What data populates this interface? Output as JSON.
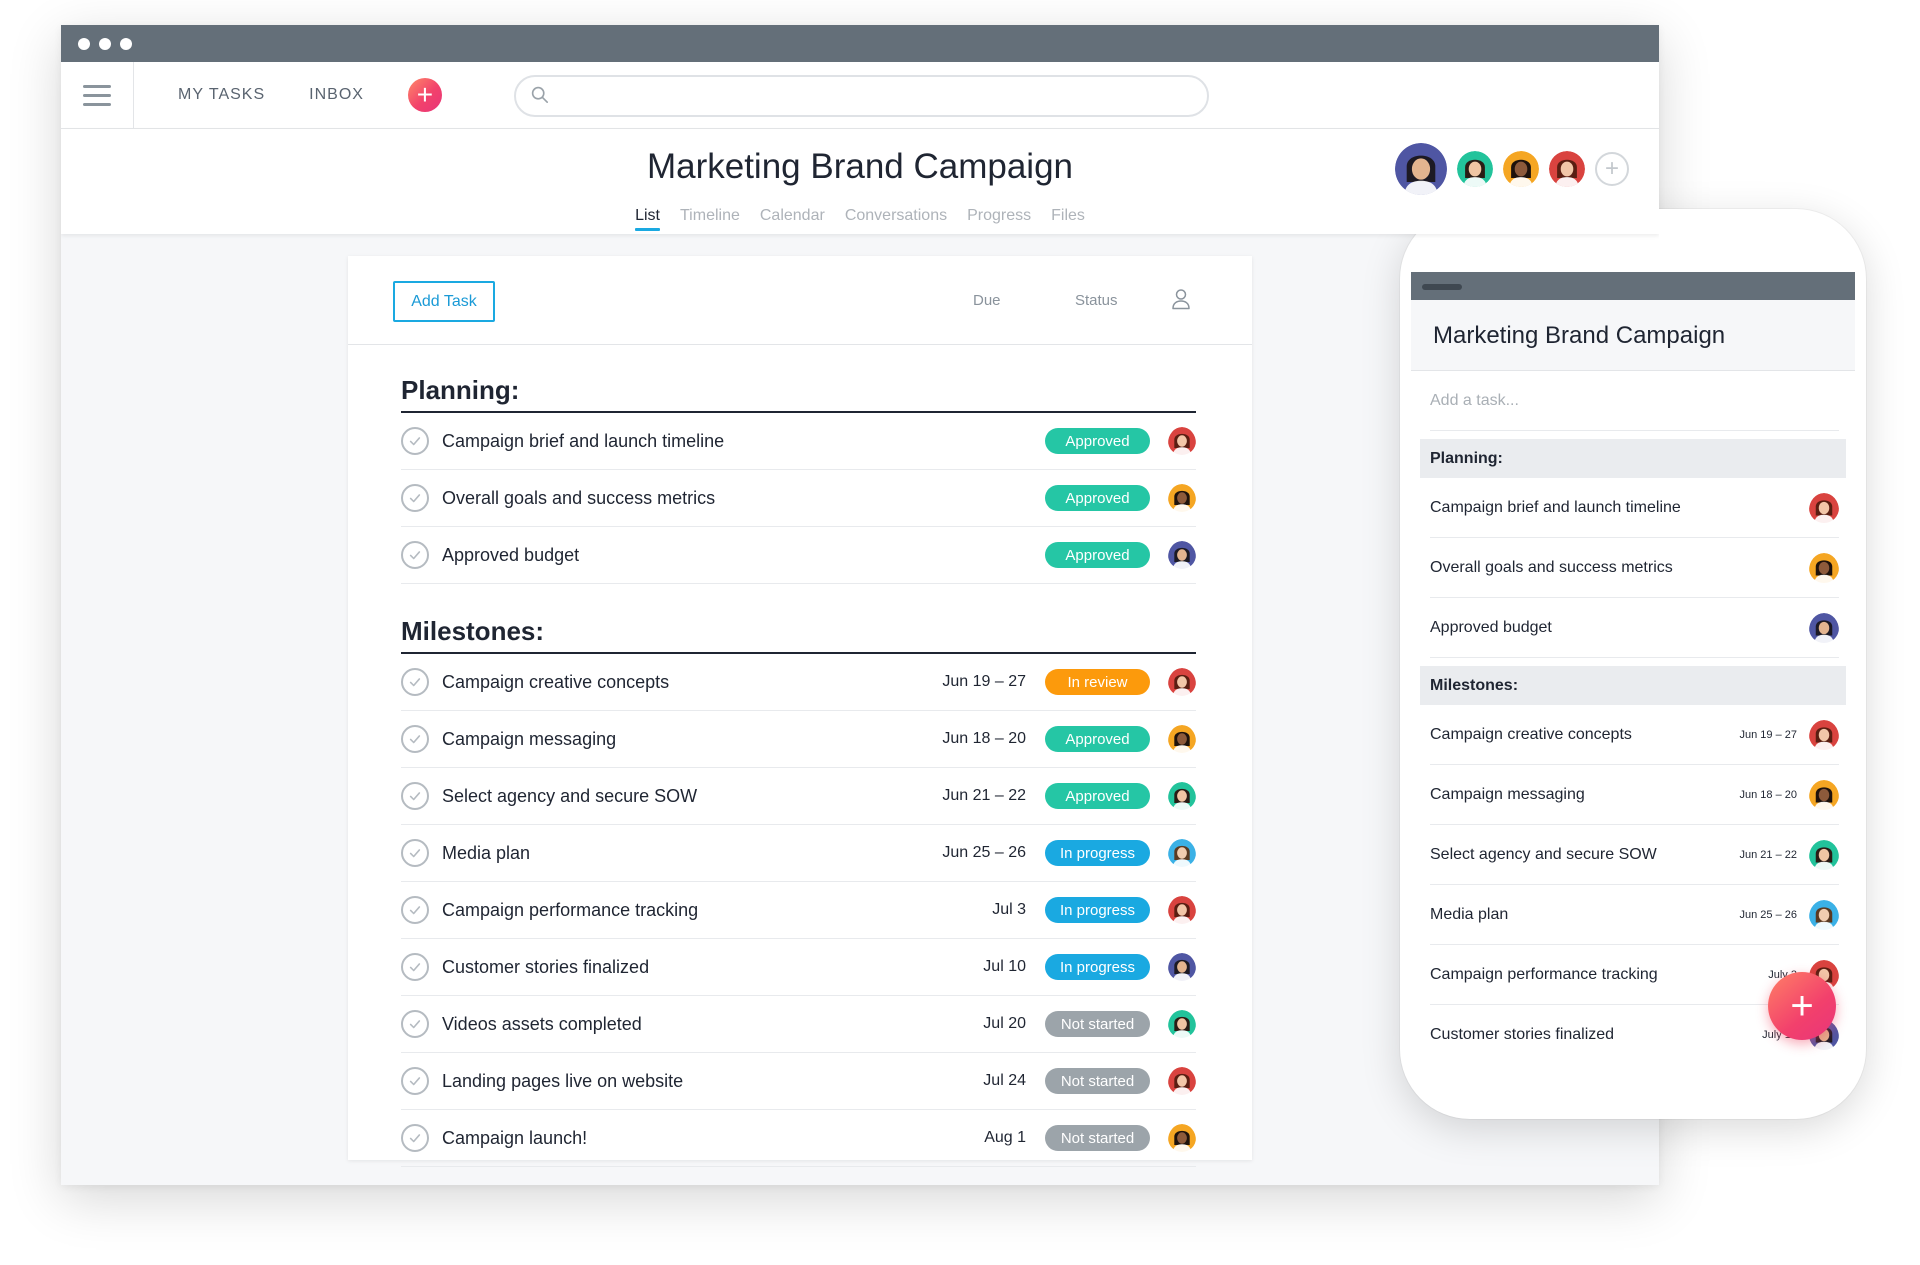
{
  "window": {
    "nav": {
      "my_tasks": "MY TASKS",
      "inbox": "INBOX",
      "add": "+"
    },
    "search": {
      "placeholder": ""
    },
    "project": {
      "title": "Marketing Brand Campaign",
      "tabs": [
        {
          "label": "List",
          "active": true
        },
        {
          "label": "Timeline"
        },
        {
          "label": "Calendar"
        },
        {
          "label": "Conversations"
        },
        {
          "label": "Progress"
        },
        {
          "label": "Files"
        }
      ],
      "add_member": "+"
    },
    "card": {
      "add_task": "Add Task",
      "col_due": "Due",
      "col_status": "Status",
      "sections": [
        {
          "title": "Planning:",
          "tasks": [
            {
              "name": "Campaign brief and launch timeline",
              "due": "",
              "status": "Approved",
              "kind": "approved",
              "avatar": "red"
            },
            {
              "name": "Overall goals and success metrics",
              "due": "",
              "status": "Approved",
              "kind": "approved",
              "avatar": "orange"
            },
            {
              "name": "Approved budget",
              "due": "",
              "status": "Approved",
              "kind": "approved",
              "avatar": "purple"
            }
          ]
        },
        {
          "title": "Milestones:",
          "tasks": [
            {
              "name": "Campaign creative concepts",
              "due": "Jun 19 – 27",
              "status": "In review",
              "kind": "review",
              "avatar": "red"
            },
            {
              "name": "Campaign messaging",
              "due": "Jun 18 – 20",
              "status": "Approved",
              "kind": "approved",
              "avatar": "orange"
            },
            {
              "name": "Select agency and secure SOW",
              "due": "Jun 21 – 22",
              "status": "Approved",
              "kind": "approved",
              "avatar": "teal"
            },
            {
              "name": "Media plan",
              "due": "Jun 25 – 26",
              "status": "In progress",
              "kind": "progress",
              "avatar": "blue"
            },
            {
              "name": "Campaign performance tracking",
              "due": "Jul 3",
              "status": "In progress",
              "kind": "progress",
              "avatar": "red"
            },
            {
              "name": "Customer stories finalized",
              "due": "Jul 10",
              "status": "In progress",
              "kind": "progress",
              "avatar": "purple"
            },
            {
              "name": "Videos assets completed",
              "due": "Jul 20",
              "status": "Not started",
              "kind": "notstarted",
              "avatar": "teal"
            },
            {
              "name": "Landing pages live on website",
              "due": "Jul 24",
              "status": "Not started",
              "kind": "notstarted",
              "avatar": "red"
            },
            {
              "name": "Campaign launch!",
              "due": "Aug 1",
              "status": "Not started",
              "kind": "notstarted",
              "avatar": "orange"
            }
          ]
        }
      ]
    }
  },
  "phone": {
    "title": "Marketing Brand Campaign",
    "add_placeholder": "Add a task...",
    "fab": "+",
    "sections": [
      {
        "title": "Planning:",
        "tasks": [
          {
            "name": "Campaign brief and launch timeline",
            "due": "",
            "avatar": "red"
          },
          {
            "name": "Overall goals and success metrics",
            "due": "",
            "avatar": "orange"
          },
          {
            "name": "Approved budget",
            "due": "",
            "avatar": "purple"
          }
        ]
      },
      {
        "title": "Milestones:",
        "tasks": [
          {
            "name": "Campaign creative concepts",
            "due": "Jun 19 – 27",
            "avatar": "red"
          },
          {
            "name": "Campaign messaging",
            "due": "Jun 18 – 20",
            "avatar": "orange"
          },
          {
            "name": "Select agency and secure SOW",
            "due": "Jun 21 – 22",
            "avatar": "teal"
          },
          {
            "name": "Media plan",
            "due": "Jun 25 – 26",
            "avatar": "blue"
          },
          {
            "name": "Campaign performance tracking",
            "due": "July 3",
            "avatar": "red"
          },
          {
            "name": "Customer stories finalized",
            "due": "July 10",
            "avatar": "purple"
          }
        ]
      }
    ]
  },
  "colors": {
    "accent": "#1aa9e1",
    "approved": "#25c6a5",
    "in_review": "#fc9a0c",
    "in_progress": "#1aa9e1",
    "not_started": "#9ca4aa",
    "titlebar": "#646f79"
  },
  "icons": {
    "menu": "hamburger-icon",
    "search": "search-icon",
    "check": "checkmark-icon",
    "person": "person-icon",
    "plus": "plus-icon"
  }
}
